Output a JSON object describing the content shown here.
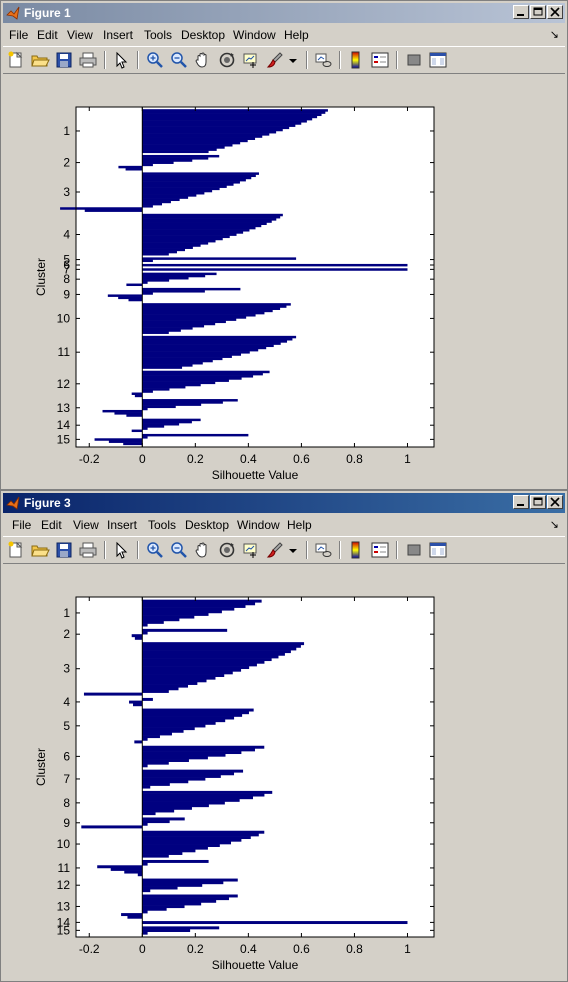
{
  "windows": [
    {
      "title": "Figure 1",
      "active": false,
      "menus": [
        "File",
        "Edit",
        "View",
        "Insert",
        "Tools",
        "Desktop",
        "Window",
        "Help"
      ],
      "chart_data": {
        "type": "bar",
        "orientation": "horizontal",
        "xlabel": "Silhouette Value",
        "ylabel": "Cluster",
        "xlim": [
          -0.25,
          1.1
        ],
        "xticks": [
          "-0.2",
          "0",
          "0.2",
          "0.4",
          "0.6",
          "0.8",
          "1"
        ],
        "cluster_labels": [
          "1",
          "2",
          "3",
          "4",
          "5",
          "6",
          "7",
          "8",
          "9",
          "10",
          "11",
          "12",
          "13",
          "14",
          "15"
        ],
        "clusters": [
          {
            "label": "1",
            "max": 0.7,
            "min": 0.25,
            "neg": 0,
            "neg_count": 0,
            "count": 20
          },
          {
            "label": "2",
            "max": 0.29,
            "min": 0.04,
            "neg": -0.09,
            "neg_count": 2,
            "count": 7
          },
          {
            "label": "3",
            "max": 0.44,
            "min": 0.04,
            "neg": -0.31,
            "neg_count": 2,
            "count": 18
          },
          {
            "label": "4",
            "max": 0.53,
            "min": 0.1,
            "neg": 0,
            "neg_count": 0,
            "count": 19
          },
          {
            "label": "5",
            "max": 0.58,
            "min": 0.04,
            "neg": 0,
            "neg_count": 0,
            "count": 2
          },
          {
            "label": "6",
            "max": 1.0,
            "min": 1.0,
            "neg": 0,
            "neg_count": 0,
            "count": 1
          },
          {
            "label": "7",
            "max": 1.0,
            "min": 1.0,
            "neg": 0,
            "neg_count": 0,
            "count": 1
          },
          {
            "label": "8",
            "max": 0.28,
            "min": 0.02,
            "neg": -0.06,
            "neg_count": 1,
            "count": 6
          },
          {
            "label": "9",
            "max": 0.37,
            "min": 0.04,
            "neg": -0.13,
            "neg_count": 3,
            "count": 6
          },
          {
            "label": "10",
            "max": 0.56,
            "min": 0.1,
            "neg": 0,
            "neg_count": 0,
            "count": 14
          },
          {
            "label": "11",
            "max": 0.58,
            "min": 0.15,
            "neg": 0,
            "neg_count": 0,
            "count": 15
          },
          {
            "label": "12",
            "max": 0.48,
            "min": 0.04,
            "neg": -0.04,
            "neg_count": 2,
            "count": 12
          },
          {
            "label": "13",
            "max": 0.36,
            "min": 0.02,
            "neg": -0.15,
            "neg_count": 3,
            "count": 8
          },
          {
            "label": "14",
            "max": 0.22,
            "min": 0.02,
            "neg": -0.04,
            "neg_count": 1,
            "count": 6
          },
          {
            "label": "15",
            "max": 0.4,
            "min": 0.02,
            "neg": -0.18,
            "neg_count": 3,
            "count": 5
          }
        ]
      }
    },
    {
      "title": "Figure 3",
      "active": true,
      "menus": [
        "File",
        "Edit",
        "View",
        "Insert",
        "Tools",
        "Desktop",
        "Window",
        "Help"
      ],
      "chart_data": {
        "type": "bar",
        "orientation": "horizontal",
        "xlabel": "Silhouette Value",
        "ylabel": "Cluster",
        "xlim": [
          -0.25,
          1.1
        ],
        "xticks": [
          "-0.2",
          "0",
          "0.2",
          "0.4",
          "0.6",
          "0.8",
          "1"
        ],
        "cluster_labels": [
          "1",
          "2",
          "3",
          "4",
          "5",
          "6",
          "7",
          "8",
          "9",
          "10",
          "11",
          "12",
          "13",
          "14",
          "15"
        ],
        "clusters": [
          {
            "label": "1",
            "max": 0.45,
            "min": 0.02,
            "neg": 0,
            "neg_count": 0,
            "count": 10
          },
          {
            "label": "2",
            "max": 0.32,
            "min": 0.02,
            "neg": -0.04,
            "neg_count": 2,
            "count": 4
          },
          {
            "label": "3",
            "max": 0.61,
            "min": 0.1,
            "neg": -0.22,
            "neg_count": 1,
            "count": 20
          },
          {
            "label": "4",
            "max": 0.04,
            "min": 0.01,
            "neg": -0.05,
            "neg_count": 2,
            "count": 3
          },
          {
            "label": "5",
            "max": 0.42,
            "min": 0.02,
            "neg": -0.03,
            "neg_count": 1,
            "count": 13
          },
          {
            "label": "6",
            "max": 0.46,
            "min": 0.02,
            "neg": 0,
            "neg_count": 0,
            "count": 8
          },
          {
            "label": "7",
            "max": 0.38,
            "min": 0.03,
            "neg": 0,
            "neg_count": 0,
            "count": 7
          },
          {
            "label": "8",
            "max": 0.49,
            "min": 0.05,
            "neg": 0,
            "neg_count": 0,
            "count": 9
          },
          {
            "label": "9",
            "max": 0.16,
            "min": 0.02,
            "neg": -0.23,
            "neg_count": 1,
            "count": 4
          },
          {
            "label": "10",
            "max": 0.46,
            "min": 0.1,
            "neg": 0,
            "neg_count": 0,
            "count": 10
          },
          {
            "label": "11",
            "max": 0.25,
            "min": 0.02,
            "neg": -0.17,
            "neg_count": 4,
            "count": 6
          },
          {
            "label": "12",
            "max": 0.36,
            "min": 0.03,
            "neg": 0,
            "neg_count": 0,
            "count": 5
          },
          {
            "label": "13",
            "max": 0.36,
            "min": 0.02,
            "neg": -0.08,
            "neg_count": 2,
            "count": 9
          },
          {
            "label": "14",
            "max": 1.0,
            "min": 1.0,
            "neg": 0,
            "neg_count": 0,
            "count": 1
          },
          {
            "label": "15",
            "max": 0.29,
            "min": 0.02,
            "neg": 0,
            "neg_count": 0,
            "count": 3
          }
        ]
      }
    }
  ],
  "toolbar_icons": [
    "new-figure-icon",
    "open-file-icon",
    "save-icon",
    "print-icon",
    "edit-plot-arrow-icon",
    "zoom-in-icon",
    "zoom-out-icon",
    "pan-hand-icon",
    "rotate-3d-icon",
    "data-cursor-icon",
    "brush-icon",
    "brush-dropdown-icon",
    "link-plot-icon",
    "colorbar-icon",
    "legend-icon",
    "hide-plot-tools-icon",
    "show-plot-tools-icon"
  ],
  "colors": {
    "bar": "#000080",
    "axes_bg": "#ffffff",
    "figure_bg": "#d4d0c8",
    "title_active": "#0a246a",
    "title_inactive": "#7a8aa3"
  }
}
